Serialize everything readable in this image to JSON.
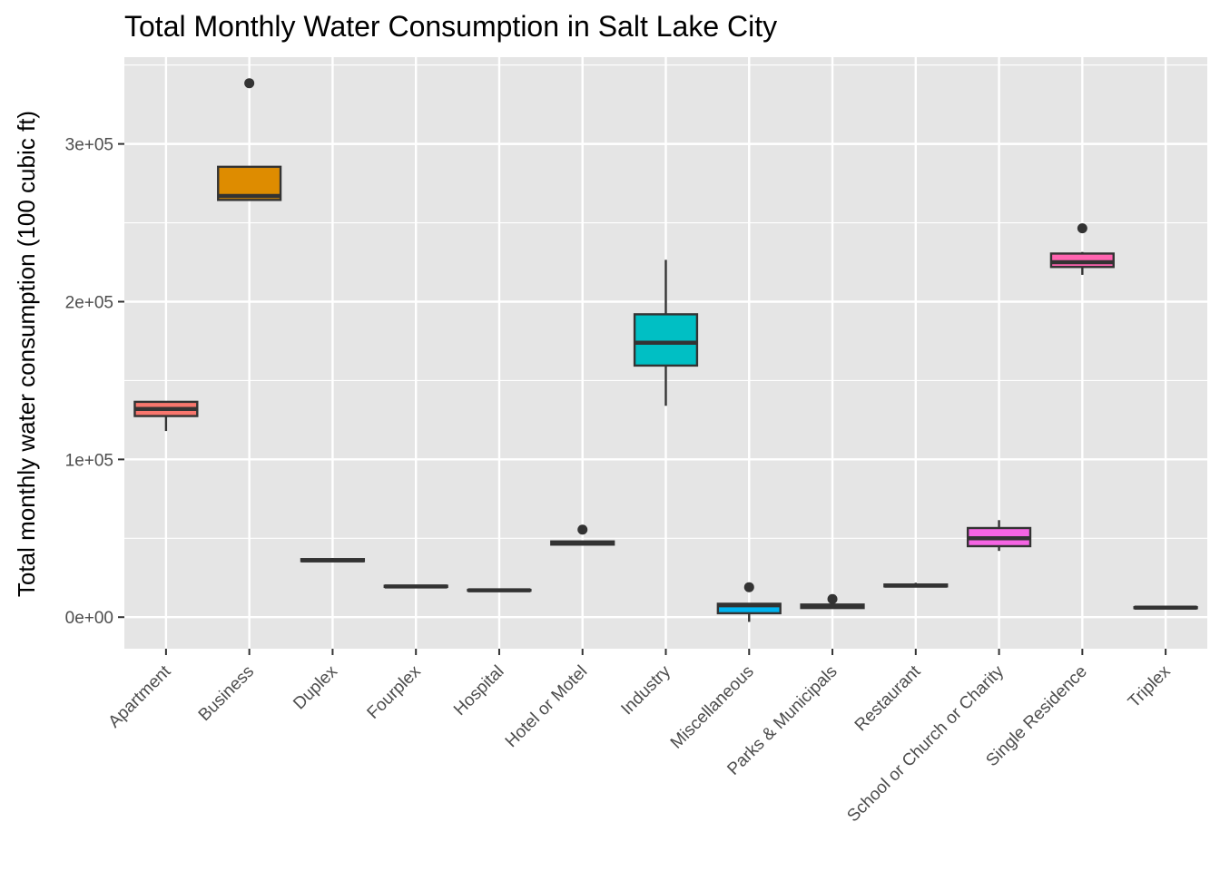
{
  "chart_data": {
    "type": "boxplot",
    "title": "Total Monthly Water Consumption in Salt Lake City",
    "xlabel": "",
    "ylabel": "Total monthly water consumption (100 cubic ft)",
    "ylim": [
      -20000,
      355000
    ],
    "yticks": [
      0,
      100000,
      200000,
      300000
    ],
    "ytick_labels": [
      "0e+00",
      "1e+05",
      "2e+05",
      "3e+05"
    ],
    "grid": true,
    "categories": [
      "Apartment",
      "Business",
      "Duplex",
      "Fourplex",
      "Hospital",
      "Hotel or Motel",
      "Industry",
      "Miscellaneous",
      "Parks & Municipals",
      "Restaurant",
      "School or Church or Charity",
      "Single Residence",
      "Triplex"
    ],
    "boxes": [
      {
        "category": "Apartment",
        "fill": "#F8766D",
        "whisker_low": 118000,
        "q1": 127500,
        "median": 132000,
        "q3": 136500,
        "whisker_high": 137000,
        "outliers": []
      },
      {
        "category": "Business",
        "fill": "#DE8C00",
        "whisker_low": 264000,
        "q1": 264500,
        "median": 267000,
        "q3": 285500,
        "whisker_high": 286000,
        "outliers": [
          338500
        ]
      },
      {
        "category": "Duplex",
        "fill": "#B79F00",
        "whisker_low": 35000,
        "q1": 35500,
        "median": 36000,
        "q3": 36800,
        "whisker_high": 37500,
        "outliers": []
      },
      {
        "category": "Fourplex",
        "fill": "#7CAE00",
        "whisker_low": 19000,
        "q1": 19200,
        "median": 19500,
        "q3": 19900,
        "whisker_high": 20200,
        "outliers": []
      },
      {
        "category": "Hospital",
        "fill": "#00BA38",
        "whisker_low": 16500,
        "q1": 16800,
        "median": 17000,
        "q3": 17300,
        "whisker_high": 17600,
        "outliers": []
      },
      {
        "category": "Hotel or Motel",
        "fill": "#00C08B",
        "whisker_low": 45500,
        "q1": 46000,
        "median": 47000,
        "q3": 48000,
        "whisker_high": 48500,
        "outliers": [
          55500
        ]
      },
      {
        "category": "Industry",
        "fill": "#00BFC4",
        "whisker_low": 134000,
        "q1": 159500,
        "median": 174000,
        "q3": 192000,
        "whisker_high": 226500,
        "outliers": []
      },
      {
        "category": "Miscellaneous",
        "fill": "#00B4F0",
        "whisker_low": -3000,
        "q1": 2500,
        "median": 7500,
        "q3": 8500,
        "whisker_high": 9000,
        "outliers": [
          19000
        ]
      },
      {
        "category": "Parks & Municipals",
        "fill": "#619CFF",
        "whisker_low": 5500,
        "q1": 5800,
        "median": 7000,
        "q3": 8000,
        "whisker_high": 8500,
        "outliers": [
          11500
        ]
      },
      {
        "category": "Restaurant",
        "fill": "#C77CFF",
        "whisker_low": 19200,
        "q1": 19500,
        "median": 20000,
        "q3": 20700,
        "whisker_high": 21800,
        "outliers": []
      },
      {
        "category": "School or Church or Charity",
        "fill": "#F564E3",
        "whisker_low": 42000,
        "q1": 45000,
        "median": 50000,
        "q3": 56500,
        "whisker_high": 61500,
        "outliers": []
      },
      {
        "category": "Single Residence",
        "fill": "#FF64B0",
        "whisker_low": 217000,
        "q1": 222000,
        "median": 225000,
        "q3": 230500,
        "whisker_high": 231500,
        "outliers": [
          246500
        ]
      },
      {
        "category": "Triplex",
        "fill": "#FF6C90",
        "whisker_low": 5500,
        "q1": 5700,
        "median": 6000,
        "q3": 6300,
        "whisker_high": 6600,
        "outliers": []
      }
    ]
  },
  "colors": {
    "panel": "#E5E5E5",
    "grid": "#FFFFFF",
    "box_outline": "#333333",
    "tick_text": "#4D4D4D",
    "tick_mark": "#333333"
  }
}
